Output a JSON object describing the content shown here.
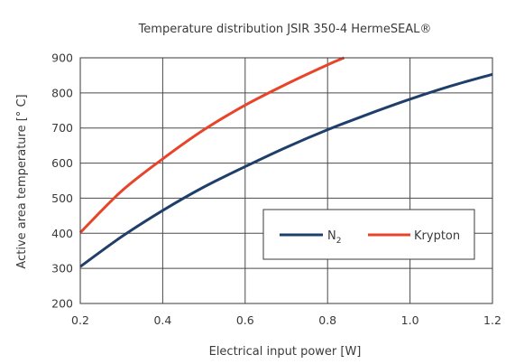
{
  "chart_data": {
    "type": "line",
    "title": "Temperature distribution JSIR 350-4 HermeSEAL®",
    "xlabel": "Electrical input power [W]",
    "ylabel": "Active area temperature [° C]",
    "xlim": [
      0.2,
      1.2
    ],
    "ylim": [
      200,
      900
    ],
    "xticks": [
      "0.2",
      "0.4",
      "0.6",
      "0.8",
      "1.0",
      "1.2"
    ],
    "yticks": [
      "200",
      "300",
      "400",
      "500",
      "600",
      "700",
      "800",
      "900"
    ],
    "grid": true,
    "legend_position": "lower-right",
    "series": [
      {
        "name": "N",
        "name_sub": "2",
        "color": "#1f3f6b",
        "x": [
          0.2,
          0.3,
          0.4,
          0.5,
          0.6,
          0.7,
          0.8,
          0.9,
          1.0,
          1.1,
          1.2
        ],
        "y": [
          305,
          390,
          465,
          532,
          590,
          645,
          695,
          740,
          782,
          820,
          853
        ]
      },
      {
        "name": "Krypton",
        "color": "#e8442a",
        "x": [
          0.2,
          0.3,
          0.4,
          0.5,
          0.6,
          0.7,
          0.8,
          0.84
        ],
        "y": [
          402,
          520,
          612,
          695,
          765,
          825,
          880,
          900
        ]
      }
    ]
  }
}
